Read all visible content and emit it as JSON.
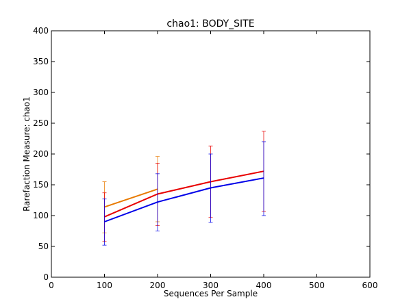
{
  "chart_data": {
    "type": "line",
    "title": "chao1: BODY_SITE",
    "xlabel": "Sequences Per Sample",
    "ylabel": "Rarefaction Measure: chao1",
    "xlim": [
      0,
      600
    ],
    "ylim": [
      0,
      400
    ],
    "xticks": [
      "0",
      "100",
      "200",
      "300",
      "400",
      "500",
      "600"
    ],
    "yticks": [
      "0",
      "50",
      "100",
      "150",
      "200",
      "250",
      "300",
      "350",
      "400"
    ],
    "grid": false,
    "legend": "none",
    "series": [
      {
        "color": "#e87a00",
        "x": [
          100,
          200
        ],
        "y": [
          114,
          143
        ],
        "err_low": [
          72,
          90
        ],
        "err_high": [
          155,
          196
        ]
      },
      {
        "color": "#e80000",
        "x": [
          100,
          200,
          300,
          400
        ],
        "y": [
          98,
          135,
          155,
          172
        ],
        "err_low": [
          58,
          84,
          97,
          107
        ],
        "err_high": [
          137,
          185,
          213,
          237
        ]
      },
      {
        "color": "#0000e8",
        "x": [
          100,
          200,
          300,
          400
        ],
        "y": [
          90,
          122,
          145,
          161
        ],
        "err_low": [
          52,
          75,
          89,
          100
        ],
        "err_high": [
          127,
          168,
          200,
          220
        ]
      }
    ]
  }
}
